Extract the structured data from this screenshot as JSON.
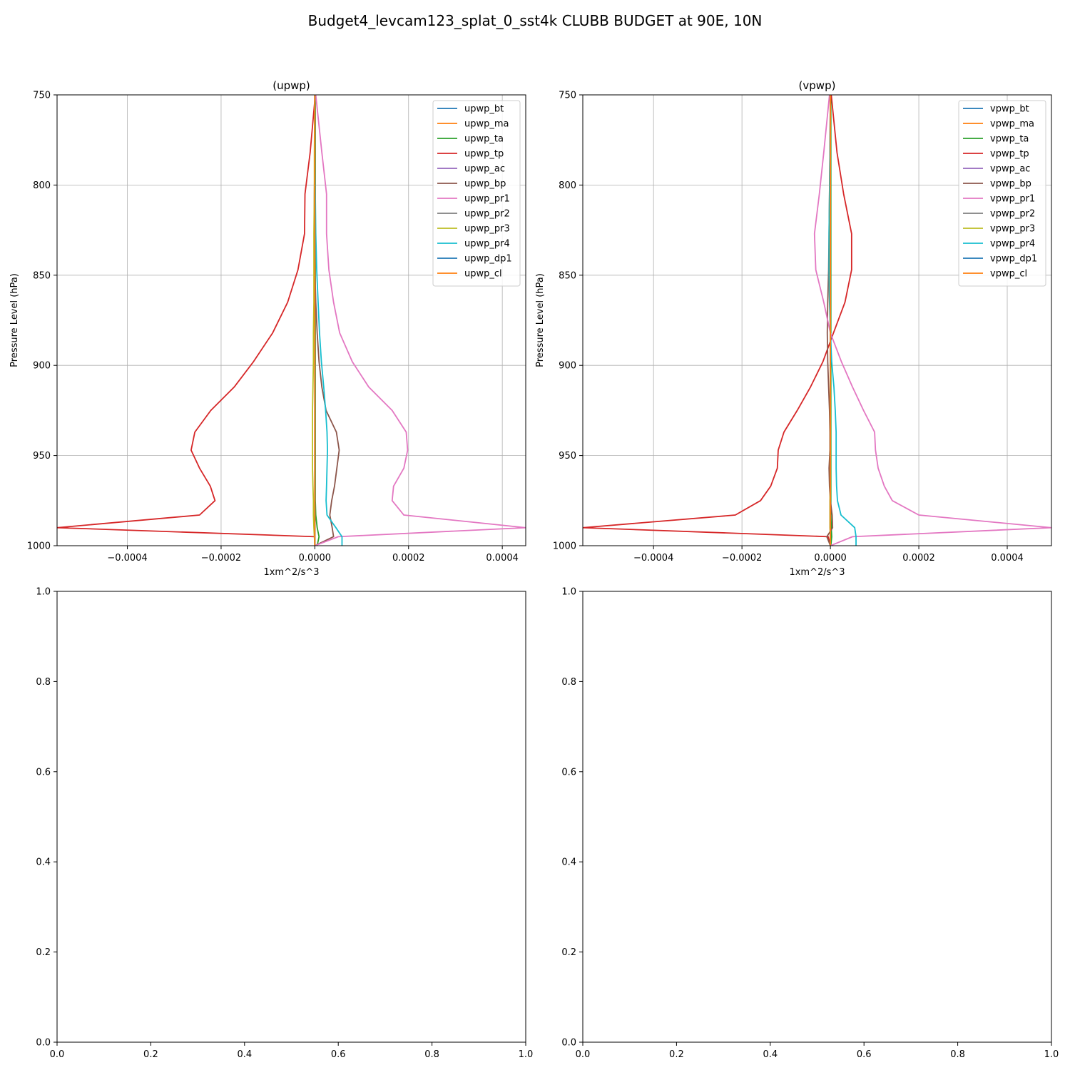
{
  "figure": {
    "suptitle": "Budget4_levcam123_splat_0_sst4k CLUBB BUDGET at 90E, 10N"
  },
  "colors": {
    "bt": "#1f77b4",
    "ma": "#ff7f0e",
    "ta": "#2ca02c",
    "tp": "#d62728",
    "ac": "#9467bd",
    "bp": "#8c564b",
    "pr1": "#e377c2",
    "pr2": "#7f7f7f",
    "pr3": "#bcbd22",
    "pr4": "#17becf",
    "dp1": "#1f77b4",
    "cl": "#ff7f0e",
    "grid": "#b0b0b0"
  },
  "chart_data": [
    {
      "type": "line",
      "title": "(upwp)",
      "xlabel": "1xm^2/s^3",
      "ylabel": "Pressure Level (hPa)",
      "xlim": [
        -0.00055,
        0.00045
      ],
      "ylim": [
        1000,
        750
      ],
      "xticks": [
        -0.0004,
        -0.0002,
        0.0,
        0.0002,
        0.0004
      ],
      "xtick_labels": [
        "−0.0004",
        "−0.0002",
        "0.0000",
        "0.0002",
        "0.0004"
      ],
      "yticks": [
        750,
        800,
        850,
        900,
        950,
        1000
      ],
      "ytick_labels": [
        "750",
        "800",
        "850",
        "900",
        "950",
        "1000"
      ],
      "grid": true,
      "legend_position": "upper right",
      "levels": [
        750,
        782,
        805,
        827,
        847,
        865,
        882,
        898,
        912,
        925,
        937,
        947,
        957,
        967,
        975,
        983,
        990,
        995,
        1000
      ],
      "series": [
        {
          "name": "upwp_bt",
          "color_key": "bt",
          "values": [
            0,
            0,
            0,
            0,
            0,
            0,
            0,
            0,
            0,
            0,
            0,
            0,
            0,
            0,
            0,
            0,
            0,
            0,
            0
          ]
        },
        {
          "name": "upwp_ma",
          "color_key": "ma",
          "values": [
            0,
            0,
            0,
            0,
            0,
            0,
            0,
            0,
            0,
            0,
            0,
            0,
            0,
            0,
            0,
            0,
            0,
            0,
            0
          ]
        },
        {
          "name": "upwp_ta",
          "color_key": "ta",
          "values": [
            1e-06,
            1e-06,
            1e-06,
            1e-06,
            1e-06,
            1e-06,
            1e-06,
            1e-06,
            1e-06,
            1e-06,
            1e-06,
            1e-06,
            1e-06,
            1e-06,
            1e-06,
            2e-06,
            5e-06,
            9e-06,
            5e-06
          ]
        },
        {
          "name": "upwp_tp",
          "color_key": "tp",
          "values": [
            1e-06,
            -1e-05,
            -2.1e-05,
            -2.2e-05,
            -3.6e-05,
            -5.8e-05,
            -9e-05,
            -0.000131,
            -0.000172,
            -0.000222,
            -0.000256,
            -0.000264,
            -0.000246,
            -0.000223,
            -0.000213,
            -0.000246,
            -0.00055,
            0.0,
            0.0
          ]
        },
        {
          "name": "upwp_ac",
          "color_key": "ac",
          "values": [
            0,
            0,
            0,
            0,
            0,
            0,
            0,
            0,
            0,
            0,
            0,
            0,
            0,
            0,
            0,
            0,
            0,
            0,
            0
          ]
        },
        {
          "name": "upwp_bp",
          "color_key": "bp",
          "values": [
            0.0,
            0.0,
            -1e-06,
            -1e-06,
            0.0,
            2e-06,
            5e-06,
            9e-06,
            1.5e-05,
            2.4e-05,
            4.6e-05,
            5.2e-05,
            4.7e-05,
            4.2e-05,
            3.6e-05,
            3.2e-05,
            3.7e-05,
            4e-05,
            0.0
          ]
        },
        {
          "name": "upwp_pr1",
          "color_key": "pr1",
          "values": [
            2e-06,
            1.5e-05,
            2.5e-05,
            2.5e-05,
            3e-05,
            4e-05,
            5.3e-05,
            8e-05,
            0.000115,
            0.000165,
            0.000195,
            0.000198,
            0.00019,
            0.000168,
            0.000165,
            0.00019,
            0.00045,
            5e-05,
            0.0
          ]
        },
        {
          "name": "upwp_pr2",
          "color_key": "pr2",
          "values": [
            0,
            0,
            0,
            0,
            0,
            0,
            0,
            0,
            0,
            0,
            0,
            0,
            0,
            0,
            0,
            0,
            0,
            0,
            0
          ]
        },
        {
          "name": "upwp_pr3",
          "color_key": "pr3",
          "values": [
            0.0,
            -1e-06,
            -1e-06,
            -2e-06,
            -2e-06,
            -2e-06,
            -3e-06,
            -3e-06,
            -4e-06,
            -5e-06,
            -5e-06,
            -5e-06,
            -5e-06,
            -4e-06,
            -3e-06,
            -3e-06,
            -2e-06,
            -1e-06,
            0.0
          ]
        },
        {
          "name": "upwp_pr4",
          "color_key": "pr4",
          "values": [
            0.0,
            0.0,
            1e-06,
            2e-06,
            4e-06,
            7e-06,
            1e-05,
            1.4e-05,
            1.9e-05,
            2.3e-05,
            2.6e-05,
            2.7e-05,
            2.6e-05,
            2.5e-05,
            2.4e-05,
            2.6e-05,
            4.5e-05,
            5.8e-05,
            5.8e-05
          ]
        },
        {
          "name": "upwp_dp1",
          "color_key": "dp1",
          "values": [
            0,
            0,
            0,
            0,
            0,
            0,
            0,
            0,
            0,
            0,
            0,
            0,
            0,
            0,
            0,
            0,
            0,
            0,
            0
          ]
        },
        {
          "name": "upwp_cl",
          "color_key": "cl",
          "values": [
            0,
            0,
            0,
            0,
            0,
            0,
            0,
            0,
            0,
            0,
            0,
            0,
            0,
            0,
            0,
            0,
            0,
            0,
            0
          ]
        }
      ]
    },
    {
      "type": "line",
      "title": "(vpwp)",
      "xlabel": "1xm^2/s^3",
      "ylabel": "Pressure Level (hPa)",
      "xlim": [
        -0.00056,
        0.0005
      ],
      "ylim": [
        1000,
        750
      ],
      "xticks": [
        -0.0004,
        -0.0002,
        0.0,
        0.0002,
        0.0004
      ],
      "xtick_labels": [
        "−0.0004",
        "−0.0002",
        "0.0000",
        "0.0002",
        "0.0004"
      ],
      "yticks": [
        750,
        800,
        850,
        900,
        950,
        1000
      ],
      "ytick_labels": [
        "750",
        "800",
        "850",
        "900",
        "950",
        "1000"
      ],
      "grid": true,
      "legend_position": "upper right",
      "levels": [
        750,
        782,
        805,
        827,
        847,
        865,
        882,
        898,
        912,
        925,
        937,
        947,
        957,
        967,
        975,
        983,
        990,
        995,
        1000
      ],
      "series": [
        {
          "name": "vpwp_bt",
          "color_key": "bt",
          "values": [
            0,
            0,
            0,
            0,
            0,
            0,
            0,
            0,
            0,
            0,
            0,
            0,
            0,
            0,
            0,
            0,
            0,
            0,
            0
          ]
        },
        {
          "name": "vpwp_ma",
          "color_key": "ma",
          "values": [
            0,
            0,
            0,
            0,
            0,
            0,
            0,
            0,
            0,
            0,
            0,
            0,
            0,
            0,
            0,
            0,
            0,
            0,
            0
          ]
        },
        {
          "name": "vpwp_ta",
          "color_key": "ta",
          "values": [
            1e-06,
            1e-06,
            1e-06,
            1e-06,
            1e-06,
            1e-06,
            1e-06,
            1e-06,
            1e-06,
            1e-06,
            1e-06,
            1e-06,
            1e-06,
            1e-06,
            1e-06,
            1e-06,
            2e-06,
            3e-06,
            1e-06
          ]
        },
        {
          "name": "vpwp_tp",
          "color_key": "tp",
          "values": [
            2e-06,
            1.5e-05,
            3e-05,
            4.8e-05,
            4.8e-05,
            3.3e-05,
            7e-06,
            -1.7e-05,
            -4.5e-05,
            -7.5e-05,
            -0.000105,
            -0.000118,
            -0.00012,
            -0.000135,
            -0.000158,
            -0.000215,
            -0.00056,
            -5e-06,
            0.0
          ]
        },
        {
          "name": "vpwp_ac",
          "color_key": "ac",
          "values": [
            0,
            0,
            0,
            0,
            0,
            0,
            0,
            0,
            0,
            0,
            0,
            0,
            0,
            0,
            0,
            0,
            0,
            0,
            0
          ]
        },
        {
          "name": "vpwp_bp",
          "color_key": "bp",
          "values": [
            0.0,
            -1e-06,
            -2e-06,
            -3e-06,
            -4e-06,
            -6e-06,
            -7e-06,
            -6e-06,
            -4e-06,
            -2e-06,
            -1e-06,
            -1e-06,
            -3e-06,
            -2e-06,
            0.0,
            4e-06,
            5e-06,
            -8e-06,
            0.0
          ]
        },
        {
          "name": "vpwp_pr1",
          "color_key": "pr1",
          "values": [
            -2e-06,
            -1.5e-05,
            -2.5e-05,
            -3.6e-05,
            -3.3e-05,
            -1.5e-05,
            0.0,
            2.5e-05,
            5e-05,
            7.5e-05,
            0.0001,
            0.000102,
            0.000108,
            0.000122,
            0.00014,
            0.0002,
            0.0005,
            5e-05,
            0.0
          ]
        },
        {
          "name": "vpwp_pr2",
          "color_key": "pr2",
          "values": [
            0,
            0,
            0,
            0,
            0,
            0,
            0,
            0,
            0,
            0,
            0,
            0,
            0,
            0,
            0,
            0,
            0,
            0,
            0
          ]
        },
        {
          "name": "vpwp_pr3",
          "color_key": "pr3",
          "values": [
            0.0,
            0.0,
            0.0,
            0.0,
            0.0,
            0.0,
            0.0,
            0.0,
            0.0,
            0.0,
            0.0,
            0.0,
            0.0,
            0.0,
            -1e-06,
            -1e-06,
            -1e-06,
            0.0,
            0.0
          ]
        },
        {
          "name": "vpwp_pr4",
          "color_key": "pr4",
          "values": [
            0.0,
            -1e-06,
            -2e-06,
            -3e-06,
            -3e-06,
            -2e-06,
            0.0,
            3e-06,
            8e-06,
            1.1e-05,
            1.3e-05,
            1.3e-05,
            1.3e-05,
            1.4e-05,
            1.6e-05,
            2.4e-05,
            5.5e-05,
            5.8e-05,
            5.8e-05
          ]
        },
        {
          "name": "vpwp_dp1",
          "color_key": "dp1",
          "values": [
            0,
            0,
            0,
            0,
            0,
            0,
            0,
            0,
            0,
            0,
            0,
            0,
            0,
            0,
            0,
            0,
            0,
            0,
            0
          ]
        },
        {
          "name": "vpwp_cl",
          "color_key": "cl",
          "values": [
            0,
            0,
            0,
            0,
            0,
            0,
            0,
            0,
            0,
            0,
            0,
            0,
            0,
            0,
            0,
            0,
            0,
            0,
            0
          ]
        }
      ]
    },
    {
      "type": "line",
      "title": "",
      "xlim": [
        0,
        1
      ],
      "ylim": [
        0,
        1
      ],
      "xticks": [
        0.0,
        0.2,
        0.4,
        0.6,
        0.8,
        1.0
      ],
      "xtick_labels": [
        "0.0",
        "0.2",
        "0.4",
        "0.6",
        "0.8",
        "1.0"
      ],
      "yticks": [
        0.0,
        0.2,
        0.4,
        0.6,
        0.8,
        1.0
      ],
      "ytick_labels": [
        "0.0",
        "0.2",
        "0.4",
        "0.6",
        "0.8",
        "1.0"
      ],
      "grid": false,
      "series": []
    },
    {
      "type": "line",
      "title": "",
      "xlim": [
        0,
        1
      ],
      "ylim": [
        0,
        1
      ],
      "xticks": [
        0.0,
        0.2,
        0.4,
        0.6,
        0.8,
        1.0
      ],
      "xtick_labels": [
        "0.0",
        "0.2",
        "0.4",
        "0.6",
        "0.8",
        "1.0"
      ],
      "yticks": [
        0.0,
        0.2,
        0.4,
        0.6,
        0.8,
        1.0
      ],
      "ytick_labels": [
        "0.0",
        "0.2",
        "0.4",
        "0.6",
        "0.8",
        "1.0"
      ],
      "grid": false,
      "series": []
    }
  ]
}
